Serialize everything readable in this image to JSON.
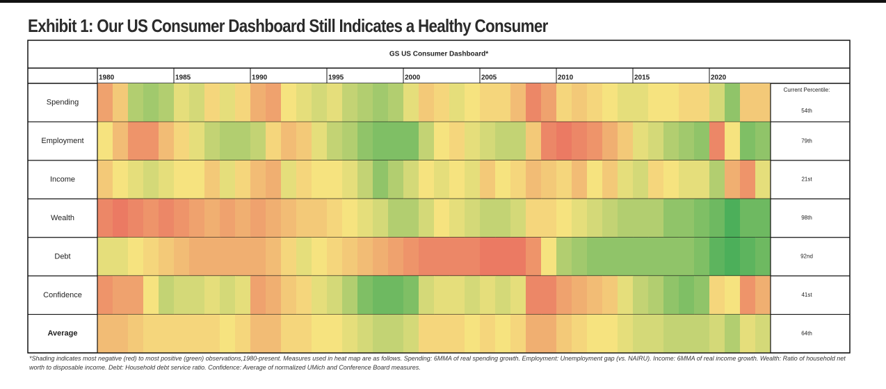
{
  "chart_data": {
    "type": "heatmap",
    "title": "Exhibit 1: Our US Consumer Dashboard Still Indicates a Healthy Consumer",
    "subtitle": "GS US Consumer Dashboard*",
    "x": [
      1980,
      1981,
      1982,
      1983,
      1984,
      1985,
      1986,
      1987,
      1988,
      1989,
      1990,
      1991,
      1992,
      1993,
      1994,
      1995,
      1996,
      1997,
      1998,
      1999,
      2000,
      2001,
      2002,
      2003,
      2004,
      2005,
      2006,
      2007,
      2008,
      2009,
      2010,
      2011,
      2012,
      2013,
      2014,
      2015,
      2016,
      2017,
      2018,
      2019,
      2020,
      2021,
      2022,
      2023
    ],
    "xlim": [
      1980,
      2024
    ],
    "xticks": [
      1980,
      1985,
      1990,
      1995,
      2000,
      2005,
      2010,
      2015,
      2020
    ],
    "zlim": [
      0,
      100
    ],
    "colors": [
      "#e8605c",
      "#f6e37f",
      "#4caf5a"
    ],
    "current_header": "Current Percentile:",
    "series": [
      {
        "name": "Spending",
        "current": "54th",
        "values": [
          25,
          40,
          70,
          75,
          70,
          55,
          60,
          45,
          55,
          45,
          30,
          25,
          50,
          55,
          60,
          55,
          65,
          70,
          75,
          70,
          55,
          40,
          45,
          55,
          50,
          45,
          45,
          35,
          15,
          25,
          45,
          40,
          45,
          50,
          55,
          55,
          50,
          50,
          45,
          45,
          60,
          80,
          40,
          40
        ]
      },
      {
        "name": "Employment",
        "current": "79th",
        "values": [
          50,
          35,
          20,
          20,
          35,
          45,
          55,
          65,
          70,
          70,
          65,
          45,
          35,
          40,
          55,
          65,
          70,
          80,
          85,
          85,
          85,
          65,
          50,
          45,
          55,
          60,
          65,
          65,
          40,
          15,
          10,
          15,
          20,
          30,
          40,
          55,
          60,
          70,
          75,
          80,
          15,
          50,
          85,
          80
        ]
      },
      {
        "name": "Income",
        "current": "21st",
        "values": [
          40,
          50,
          55,
          60,
          55,
          50,
          50,
          40,
          55,
          45,
          35,
          30,
          55,
          45,
          50,
          50,
          55,
          65,
          80,
          70,
          60,
          50,
          55,
          50,
          55,
          40,
          50,
          45,
          35,
          40,
          45,
          35,
          50,
          40,
          55,
          60,
          45,
          50,
          55,
          55,
          70,
          30,
          20,
          55
        ]
      },
      {
        "name": "Wealth",
        "current": "98th",
        "values": [
          15,
          10,
          15,
          20,
          15,
          20,
          25,
          30,
          25,
          30,
          25,
          30,
          35,
          40,
          40,
          45,
          50,
          55,
          60,
          70,
          70,
          60,
          50,
          55,
          60,
          65,
          65,
          60,
          45,
          45,
          50,
          55,
          60,
          65,
          70,
          70,
          70,
          80,
          80,
          85,
          90,
          100,
          90,
          90
        ]
      },
      {
        "name": "Debt",
        "current": "92nd",
        "values": [
          55,
          55,
          50,
          45,
          40,
          35,
          30,
          30,
          30,
          30,
          30,
          35,
          45,
          55,
          50,
          45,
          40,
          35,
          30,
          25,
          20,
          15,
          15,
          15,
          15,
          10,
          10,
          10,
          20,
          50,
          70,
          75,
          80,
          80,
          80,
          80,
          80,
          80,
          80,
          85,
          95,
          100,
          95,
          90
        ]
      },
      {
        "name": "Confidence",
        "current": "41st",
        "values": [
          20,
          25,
          25,
          50,
          65,
          60,
          60,
          55,
          60,
          55,
          25,
          30,
          40,
          45,
          55,
          60,
          70,
          85,
          90,
          90,
          85,
          60,
          55,
          55,
          60,
          55,
          60,
          55,
          15,
          15,
          25,
          30,
          35,
          40,
          55,
          65,
          70,
          80,
          85,
          80,
          45,
          50,
          20,
          30
        ]
      },
      {
        "name": "Average",
        "current": "64th",
        "values": [
          35,
          35,
          40,
          45,
          45,
          45,
          45,
          45,
          50,
          45,
          35,
          35,
          45,
          45,
          50,
          50,
          55,
          60,
          65,
          65,
          60,
          45,
          45,
          45,
          50,
          45,
          50,
          45,
          30,
          30,
          40,
          45,
          50,
          50,
          55,
          60,
          60,
          65,
          65,
          65,
          60,
          70,
          55,
          60
        ]
      }
    ],
    "footnote": "*Shading indicates most negative (red) to most positive (green) observations,1980-present. Measures used in heat map are as follows. Spending: 6MMA of real spending growth. Employment: Unemployment gap (vs. NAIRU). Income: 6MMA of real income growth. Wealth: Ratio of household net worth to disposable income. Debt: Household debt service ratio. Confidence: Average of normalized UMich and Conference Board measures."
  }
}
